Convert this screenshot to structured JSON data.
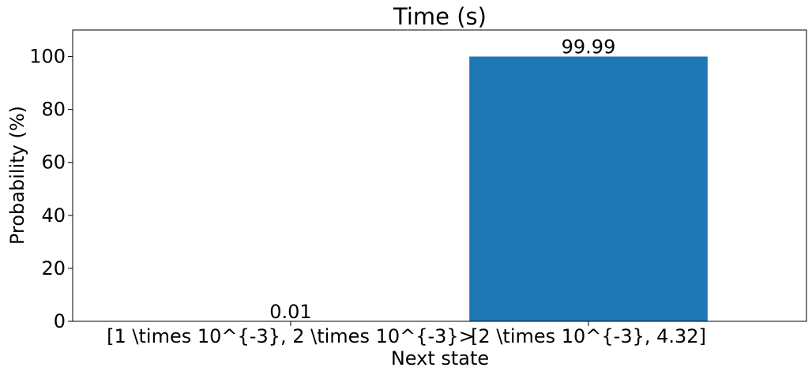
{
  "chart_data": {
    "type": "bar",
    "title": "Time (s)",
    "xlabel": "Next state",
    "ylabel": "Probability (%)",
    "categories": [
      "[1 \\times 10^{-3}, 2 \\times 10^{-3}>",
      "[2 \\times 10^{-3}, 4.32]"
    ],
    "values": [
      0.01,
      99.99
    ],
    "data_labels": [
      "0.01",
      "99.99"
    ],
    "ylim": [
      0,
      110
    ],
    "yticks": [
      0,
      20,
      40,
      60,
      80,
      100
    ],
    "ytick_labels": [
      "0",
      "20",
      "40",
      "60",
      "80",
      "100"
    ],
    "grid": false,
    "legend": "none",
    "bar_color": "#1f77b4"
  }
}
